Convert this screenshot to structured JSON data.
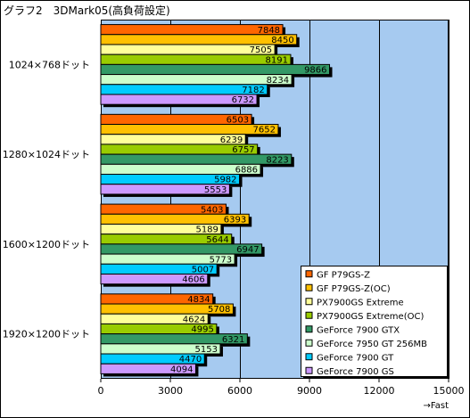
{
  "chart_data": {
    "type": "bar",
    "orientation": "horizontal",
    "title": "グラフ2　3DMark05(高負荷設定)",
    "axis_note": "→Fast",
    "xlim": [
      0,
      15000
    ],
    "xticks": [
      0,
      3000,
      6000,
      9000,
      12000,
      15000
    ],
    "grid": true,
    "legend_position": "bottom-right",
    "plot_background": "#a6caf0",
    "categories": [
      "1024×768ドット",
      "1280×1024ドット",
      "1600×1200ドット",
      "1920×1200ドット"
    ],
    "series": [
      {
        "name": "GF P79GS-Z",
        "color": "#ff6600",
        "values": [
          7848,
          6503,
          5403,
          4834
        ]
      },
      {
        "name": "GF P79GS-Z(OC)",
        "color": "#ffc000",
        "values": [
          8450,
          7652,
          6393,
          5708
        ]
      },
      {
        "name": "PX7900GS Extreme",
        "color": "#ffff99",
        "values": [
          7505,
          6239,
          5189,
          4624
        ]
      },
      {
        "name": "PX7900GS Extreme(OC)",
        "color": "#99cc00",
        "values": [
          8191,
          6757,
          5644,
          4995
        ]
      },
      {
        "name": "GeForce 7900 GTX",
        "color": "#339966",
        "values": [
          9866,
          8223,
          6947,
          6321
        ]
      },
      {
        "name": "GeForce 7950 GT 256MB",
        "color": "#ccffcc",
        "values": [
          8234,
          6886,
          5773,
          5153
        ]
      },
      {
        "name": "GeForce 7900 GT",
        "color": "#00ccff",
        "values": [
          7182,
          5982,
          5007,
          4470
        ]
      },
      {
        "name": "GeForce 7900 GS",
        "color": "#cc99ff",
        "values": [
          6732,
          5553,
          4606,
          4094
        ]
      }
    ]
  }
}
